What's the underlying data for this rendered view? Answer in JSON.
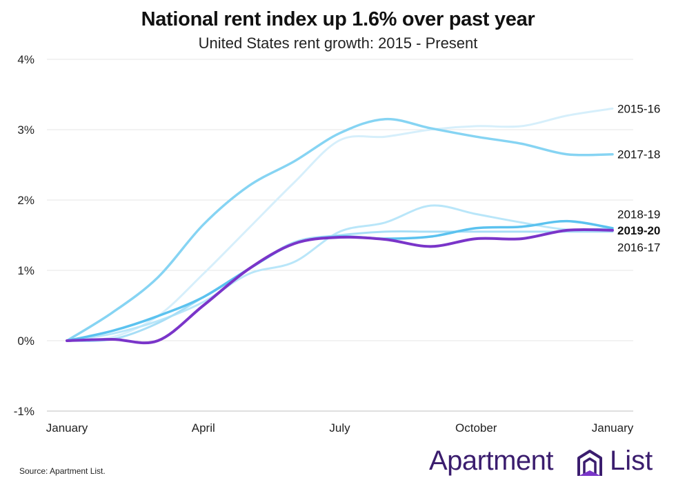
{
  "chart_data": {
    "type": "line",
    "title": "National rent index up 1.6% over past year",
    "subtitle": "United States rent growth: 2015 - Present",
    "x_tick_labels": [
      "January",
      "April",
      "July",
      "October",
      "January"
    ],
    "y_tick_labels": [
      "-1%",
      "0%",
      "1%",
      "2%",
      "3%",
      "4%"
    ],
    "ylim": [
      -1,
      4
    ],
    "xlim": [
      0,
      12
    ],
    "grid": true,
    "x": [
      0,
      1,
      2,
      3,
      4,
      5,
      6,
      7,
      8,
      9,
      10,
      11,
      12
    ],
    "series": [
      {
        "name": "2015-16",
        "color": "#d6effb",
        "width": 3,
        "bold_label": false,
        "values": [
          0,
          0.05,
          0.35,
          0.95,
          1.6,
          2.25,
          2.85,
          2.9,
          3.0,
          3.05,
          3.05,
          3.2,
          3.3
        ]
      },
      {
        "name": "2017-18",
        "color": "#86d4f3",
        "width": 3.5,
        "bold_label": false,
        "values": [
          0,
          0.4,
          0.9,
          1.65,
          2.2,
          2.55,
          2.95,
          3.15,
          3.02,
          2.9,
          2.8,
          2.65,
          2.65
        ]
      },
      {
        "name": "2018-19",
        "color": "#b9e6f9",
        "width": 3,
        "bold_label": false,
        "values": [
          0,
          0.1,
          0.28,
          0.55,
          0.95,
          1.12,
          1.55,
          1.68,
          1.92,
          1.8,
          1.68,
          1.58,
          1.6
        ]
      },
      {
        "name": "2016-17",
        "color": "#a7def6",
        "width": 3,
        "bold_label": false,
        "values": [
          0,
          0.02,
          0.25,
          0.62,
          1.02,
          1.4,
          1.5,
          1.55,
          1.55,
          1.55,
          1.55,
          1.55,
          1.55
        ]
      },
      {
        "name": "2019-20",
        "color": "#5bc2ef",
        "width": 3.5,
        "bold_label": false,
        "values": [
          0,
          0.14,
          0.35,
          0.62,
          1.02,
          1.38,
          1.48,
          1.45,
          1.48,
          1.6,
          1.62,
          1.7,
          1.6
        ]
      },
      {
        "name": "2019-20",
        "color": "#7a35c9",
        "width": 4,
        "bold_label": true,
        "values": [
          0,
          0.02,
          0.0,
          0.5,
          1.02,
          1.38,
          1.47,
          1.44,
          1.34,
          1.45,
          1.45,
          1.57,
          1.57
        ]
      }
    ],
    "end_labels": [
      {
        "text": "2015-16",
        "bold": false,
        "value": 3.3
      },
      {
        "text": "2017-18",
        "bold": false,
        "value": 2.65
      },
      {
        "text": "2018-19",
        "bold": false,
        "value": 1.8
      },
      {
        "text": "2019-20",
        "bold": true,
        "value": 1.57
      },
      {
        "text": "2016-17",
        "bold": false,
        "value": 1.33
      }
    ]
  },
  "source": "Source: Apartment List.",
  "brand": {
    "name": "Apartment",
    "suffix": "List",
    "icon": "apartment-list-logo-icon",
    "color": "#3b1d6e"
  }
}
